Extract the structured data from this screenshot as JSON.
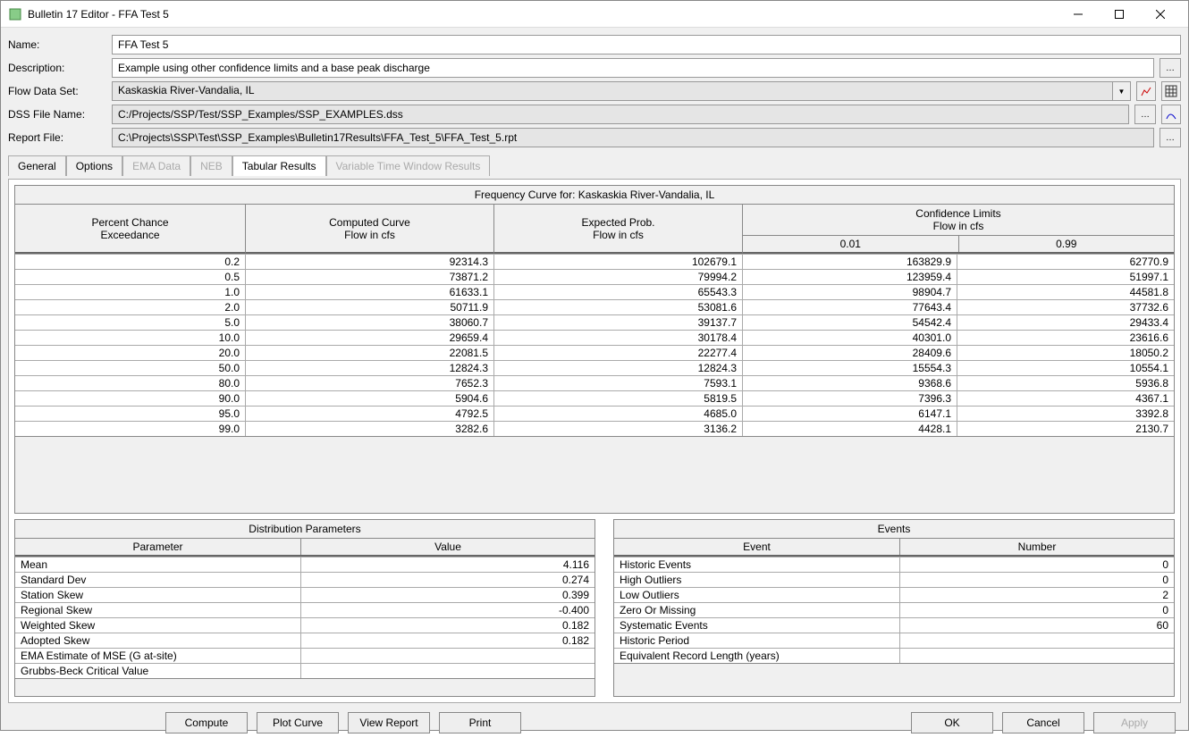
{
  "window": {
    "title": "Bulletin 17 Editor - FFA Test 5"
  },
  "fields": {
    "name_lbl": "Name:",
    "name_val": "FFA Test 5",
    "desc_lbl": "Description:",
    "desc_val": "Example using other confidence limits and a base peak discharge",
    "flow_lbl": "Flow Data Set:",
    "flow_val": "Kaskaskia River-Vandalia, IL",
    "dss_lbl": "DSS File Name:",
    "dss_val": "C:/Projects/SSP/Test/SSP_Examples/SSP_EXAMPLES.dss",
    "rpt_lbl": "Report File:",
    "rpt_val": "C:\\Projects\\SSP\\Test\\SSP_Examples\\Bulletin17Results\\FFA_Test_5\\FFA_Test_5.rpt"
  },
  "tabs": {
    "t1": "General",
    "t2": "Options",
    "t3": "EMA Data",
    "t4": "NEB",
    "t5": "Tabular Results",
    "t6": "Variable Time Window Results"
  },
  "freq": {
    "title": "Frequency Curve for: Kaskaskia River-Vandalia, IL",
    "h1a": "Percent Chance",
    "h1b": "Exceedance",
    "h2a": "Computed Curve",
    "h2b": "Flow in cfs",
    "h3a": "Expected Prob.",
    "h3b": "Flow in cfs",
    "h4a": "Confidence Limits",
    "h4b": "Flow in cfs",
    "h4c1": "0.01",
    "h4c2": "0.99",
    "cols": {
      "c1": 258,
      "c2": 278,
      "c3": 278,
      "c4": 240,
      "c5": 240
    },
    "rows": [
      [
        "0.2",
        "92314.3",
        "102679.1",
        "163829.9",
        "62770.9"
      ],
      [
        "0.5",
        "73871.2",
        "79994.2",
        "123959.4",
        "51997.1"
      ],
      [
        "1.0",
        "61633.1",
        "65543.3",
        "98904.7",
        "44581.8"
      ],
      [
        "2.0",
        "50711.9",
        "53081.6",
        "77643.4",
        "37732.6"
      ],
      [
        "5.0",
        "38060.7",
        "39137.7",
        "54542.4",
        "29433.4"
      ],
      [
        "10.0",
        "29659.4",
        "30178.4",
        "40301.0",
        "23616.6"
      ],
      [
        "20.0",
        "22081.5",
        "22277.4",
        "28409.6",
        "18050.2"
      ],
      [
        "50.0",
        "12824.3",
        "12824.3",
        "15554.3",
        "10554.1"
      ],
      [
        "80.0",
        "7652.3",
        "7593.1",
        "9368.6",
        "5936.8"
      ],
      [
        "90.0",
        "5904.6",
        "5819.5",
        "7396.3",
        "4367.1"
      ],
      [
        "95.0",
        "4792.5",
        "4685.0",
        "6147.1",
        "3392.8"
      ],
      [
        "99.0",
        "3282.6",
        "3136.2",
        "4428.1",
        "2130.7"
      ]
    ]
  },
  "dist": {
    "title": "Distribution Parameters",
    "hp": "Parameter",
    "hv": "Value",
    "cols": {
      "p": 320,
      "v": 326
    },
    "rows": [
      [
        "Mean",
        "4.116"
      ],
      [
        "Standard Dev",
        "0.274"
      ],
      [
        "Station Skew",
        "0.399"
      ],
      [
        "Regional Skew",
        "-0.400"
      ],
      [
        "Weighted Skew",
        "0.182"
      ],
      [
        "Adopted Skew",
        "0.182"
      ],
      [
        "EMA Estimate of MSE (G at-site)",
        ""
      ],
      [
        "Grubbs-Beck Critical Value",
        ""
      ]
    ]
  },
  "events": {
    "title": "Events",
    "he": "Event",
    "hn": "Number",
    "cols": {
      "e": 320,
      "n": 310
    },
    "rows": [
      [
        "Historic Events",
        "0"
      ],
      [
        "High Outliers",
        "0"
      ],
      [
        "Low Outliers",
        "2"
      ],
      [
        "Zero Or Missing",
        "0"
      ],
      [
        "Systematic Events",
        "60"
      ],
      [
        "Historic Period",
        ""
      ],
      [
        "Equivalent Record Length (years)",
        ""
      ]
    ]
  },
  "buttons": {
    "compute": "Compute",
    "plot": "Plot Curve",
    "view": "View Report",
    "print": "Print",
    "ok": "OK",
    "cancel": "Cancel",
    "apply": "Apply"
  }
}
